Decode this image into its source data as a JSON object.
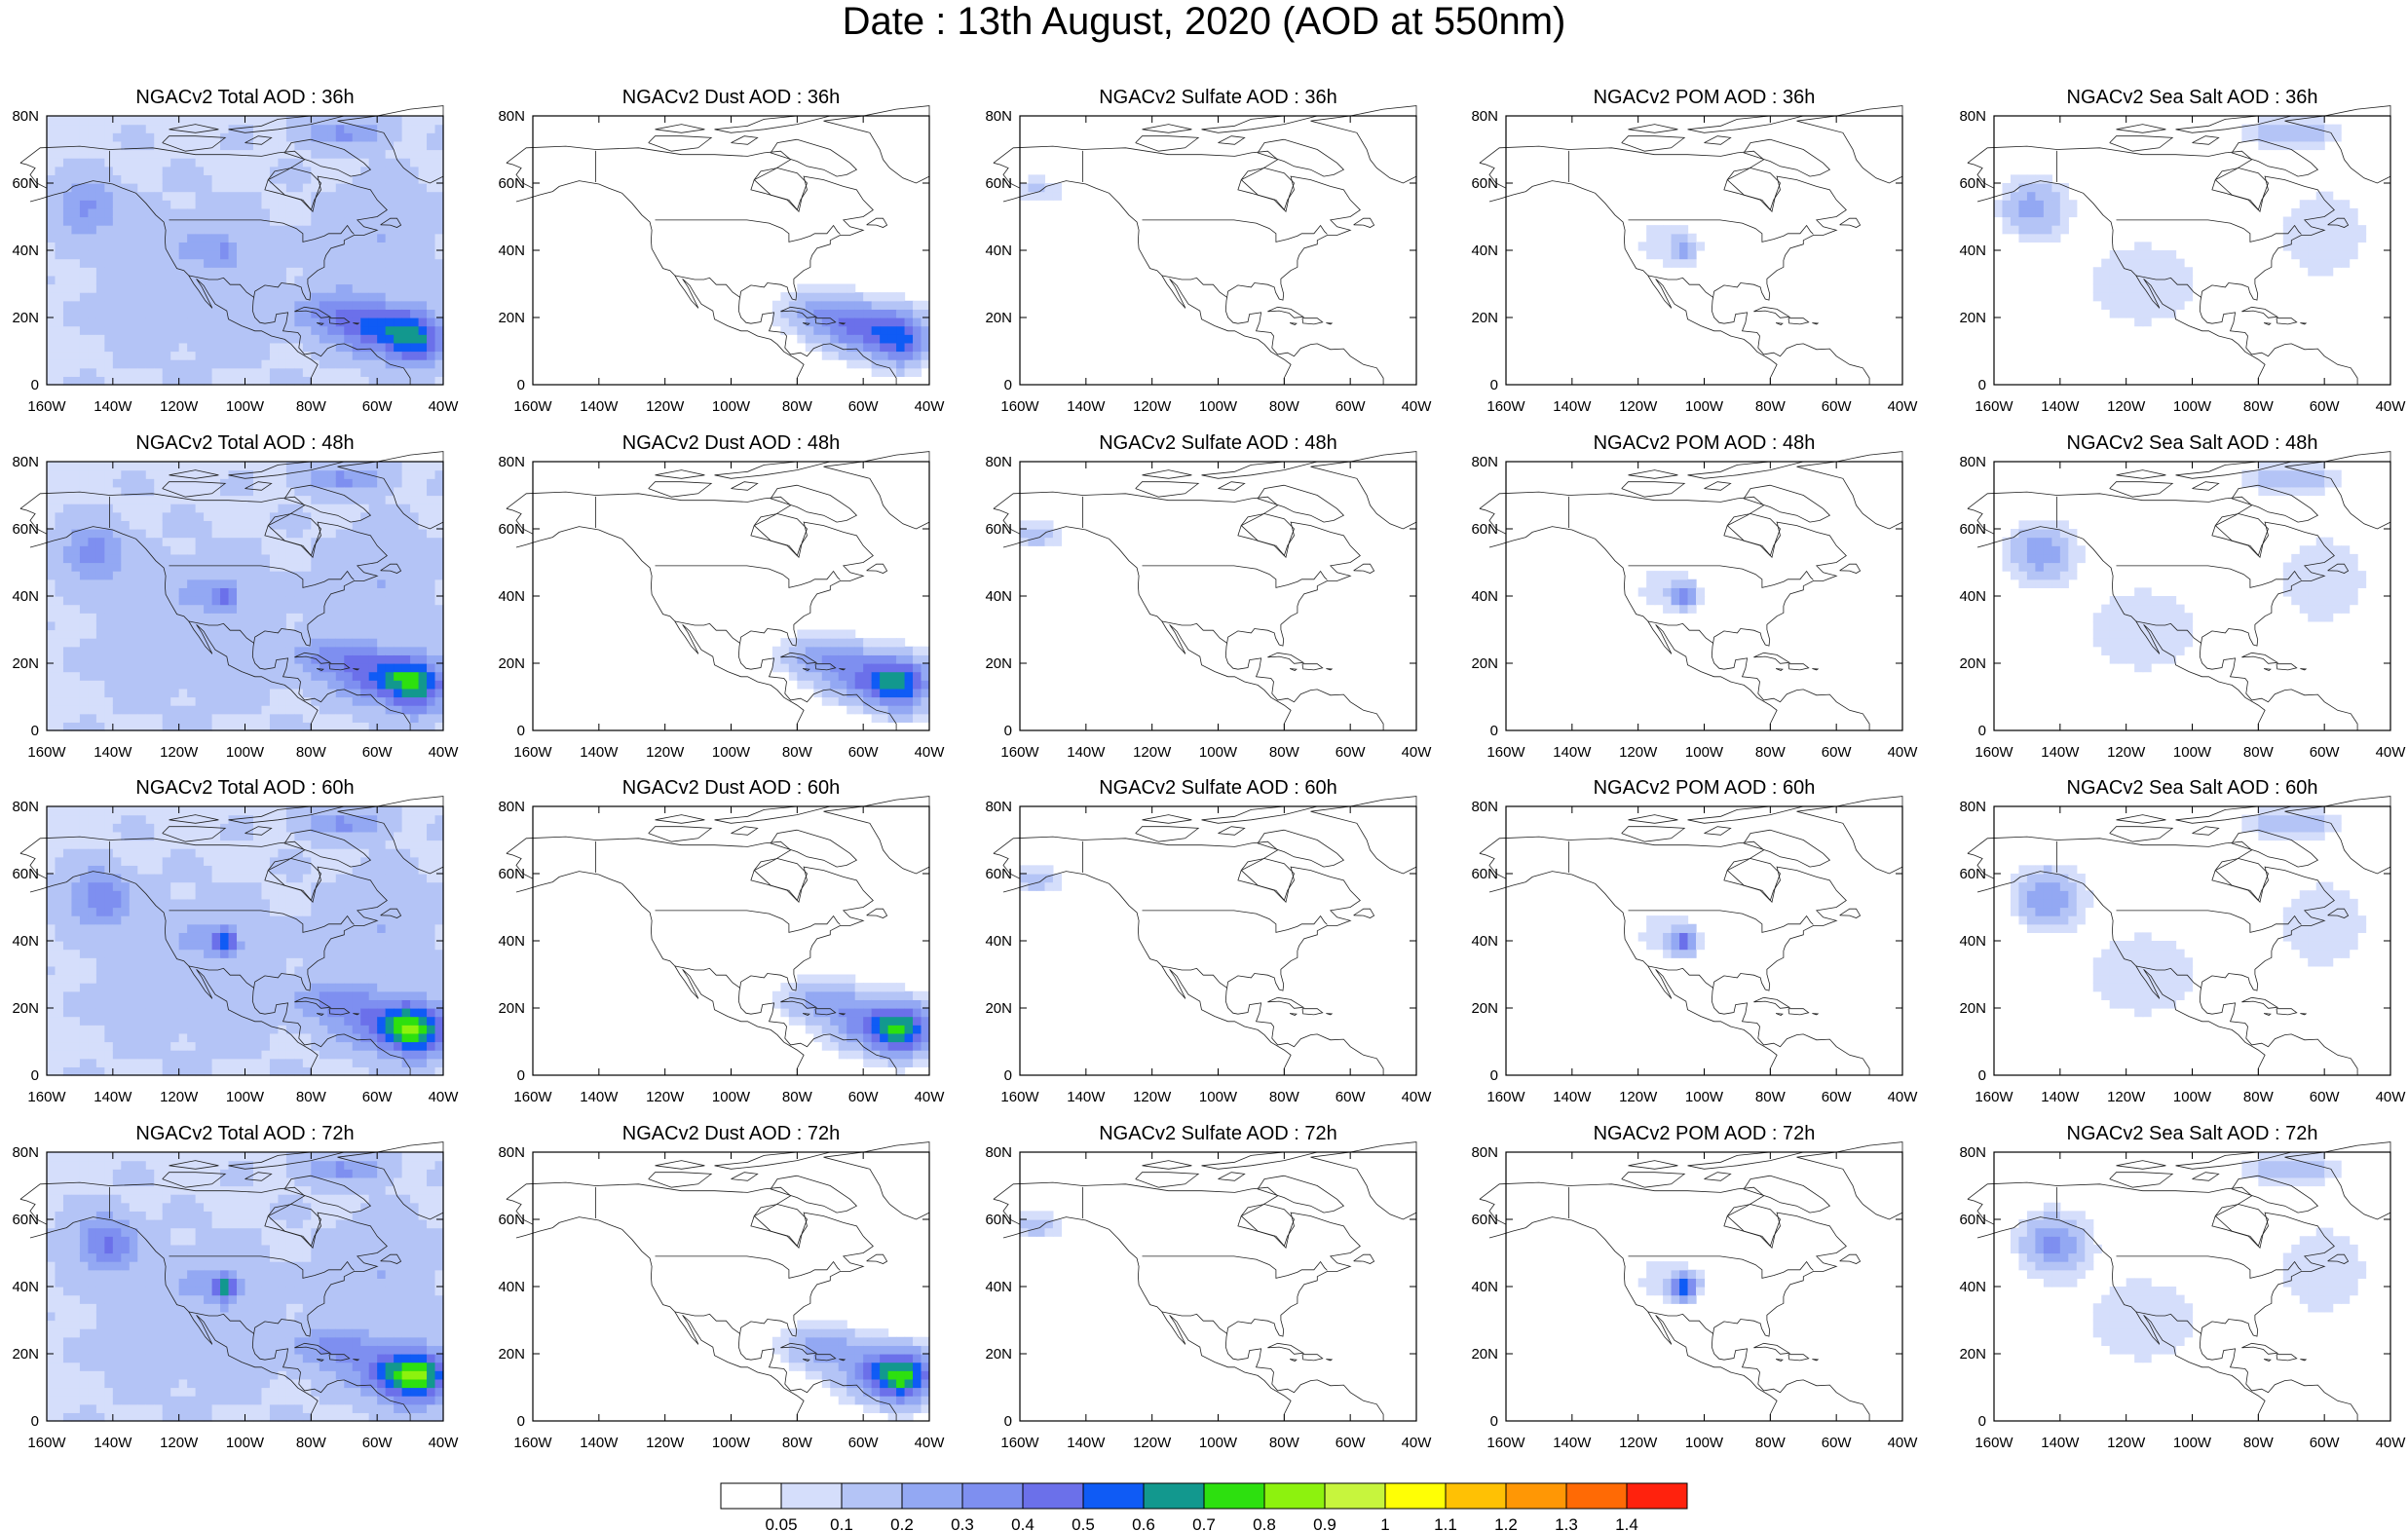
{
  "title": "Date : 13th August, 2020 (AOD at 550nm)",
  "x_ticks": [
    "160W",
    "140W",
    "120W",
    "100W",
    "80W",
    "60W",
    "40W"
  ],
  "y_ticks": [
    "0",
    "20N",
    "40N",
    "60N",
    "80N"
  ],
  "lon_range": [
    -160,
    -40
  ],
  "lat_range": [
    0,
    80
  ],
  "colorbar": {
    "labels": [
      "0.05",
      "0.1",
      "0.2",
      "0.3",
      "0.4",
      "0.5",
      "0.6",
      "0.7",
      "0.8",
      "0.9",
      "1",
      "1.1",
      "1.2",
      "1.3",
      "1.4"
    ],
    "colors": [
      "#ffffff",
      "#d5defb",
      "#b4c4f6",
      "#93a8f3",
      "#7e8ff0",
      "#6b70ea",
      "#0f5bf5",
      "#12988e",
      "#2de00f",
      "#8df20e",
      "#c7f53d",
      "#ffff05",
      "#ffc104",
      "#ff9705",
      "#ff6a05",
      "#ff220d"
    ]
  },
  "panels": [
    {
      "title": "NGACv2 Total AOD : 36h",
      "species": "total",
      "hour": 36
    },
    {
      "title": "NGACv2 Dust AOD : 36h",
      "species": "dust",
      "hour": 36
    },
    {
      "title": "NGACv2 Sulfate AOD : 36h",
      "species": "sulfate",
      "hour": 36
    },
    {
      "title": "NGACv2 POM AOD : 36h",
      "species": "pom",
      "hour": 36
    },
    {
      "title": "NGACv2 Sea Salt AOD : 36h",
      "species": "seasalt",
      "hour": 36
    },
    {
      "title": "NGACv2 Total AOD : 48h",
      "species": "total",
      "hour": 48
    },
    {
      "title": "NGACv2 Dust AOD : 48h",
      "species": "dust",
      "hour": 48
    },
    {
      "title": "NGACv2 Sulfate AOD : 48h",
      "species": "sulfate",
      "hour": 48
    },
    {
      "title": "NGACv2 POM AOD : 48h",
      "species": "pom",
      "hour": 48
    },
    {
      "title": "NGACv2 Sea Salt AOD : 48h",
      "species": "seasalt",
      "hour": 48
    },
    {
      "title": "NGACv2 Total AOD : 60h",
      "species": "total",
      "hour": 60
    },
    {
      "title": "NGACv2 Dust AOD : 60h",
      "species": "dust",
      "hour": 60
    },
    {
      "title": "NGACv2 Sulfate AOD : 60h",
      "species": "sulfate",
      "hour": 60
    },
    {
      "title": "NGACv2 POM AOD : 60h",
      "species": "pom",
      "hour": 60
    },
    {
      "title": "NGACv2 Sea Salt AOD : 60h",
      "species": "seasalt",
      "hour": 60
    },
    {
      "title": "NGACv2 Total AOD : 72h",
      "species": "total",
      "hour": 72
    },
    {
      "title": "NGACv2 Dust AOD : 72h",
      "species": "dust",
      "hour": 72
    },
    {
      "title": "NGACv2 Sulfate AOD : 72h",
      "species": "sulfate",
      "hour": 72
    },
    {
      "title": "NGACv2 POM AOD : 72h",
      "species": "pom",
      "hour": 72
    },
    {
      "title": "NGACv2 Sea Salt  AOD : 72h",
      "species": "seasalt",
      "hour": 72
    }
  ]
}
